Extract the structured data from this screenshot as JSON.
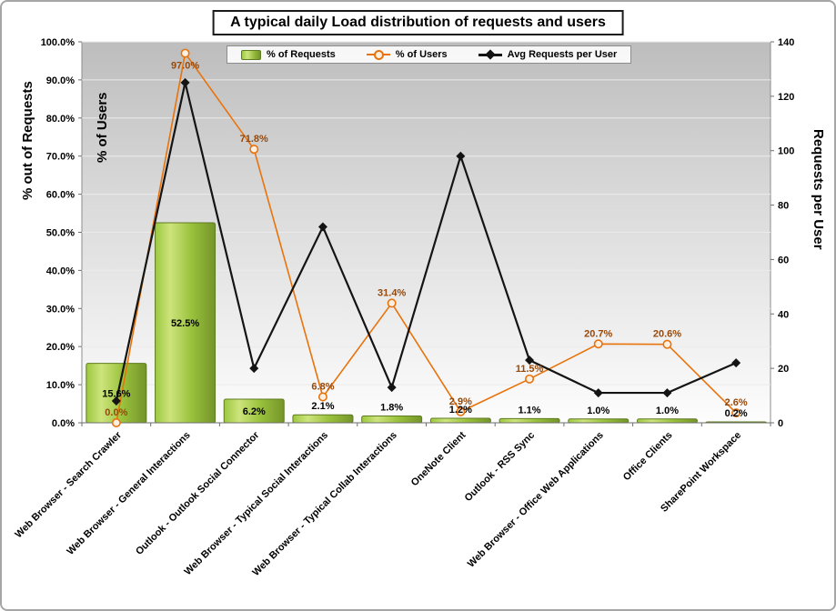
{
  "chart_data": {
    "type": "combo-bar-line",
    "title": "A typical daily Load distribution of requests and users",
    "legend_position": "top",
    "categories": [
      "Web Browser - Search Crawler",
      "Web Browser - General Interactions",
      "Outlook - Outlook Social Connector",
      "Web Browser - Typical Social Interactions",
      "Web Browser - Typical Collab Interactions",
      "OneNote Client",
      "Outlook - RSS Sync",
      "Web Browser - Office Web Applications",
      "Office Clients",
      "SharePoint Workspace"
    ],
    "series": [
      {
        "name": "% of Requests",
        "type": "bar",
        "axis": "left",
        "color": "#8CB832",
        "border_color": "#5f7b21",
        "values": [
          15.6,
          52.5,
          6.2,
          2.1,
          1.8,
          1.2,
          1.1,
          1.0,
          1.0,
          0.2
        ],
        "labels": [
          "15.6%",
          "52.5%",
          "6.2%",
          "2.1%",
          "1.8%",
          "1.2%",
          "1.1%",
          "1.0%",
          "1.0%",
          "0.2%"
        ],
        "label_color": "#000000"
      },
      {
        "name": "% of Users",
        "type": "line",
        "axis": "left",
        "color": "#E8730C",
        "values": [
          0.0,
          97.0,
          71.8,
          6.8,
          31.4,
          2.9,
          11.5,
          20.7,
          20.6,
          2.6
        ],
        "labels": [
          "0.0%",
          "97.0%",
          "71.8%",
          "6.8%",
          "31.4%",
          "2.9%",
          "11.5%",
          "20.7%",
          "20.6%",
          "2.6%"
        ],
        "label_color": "#96490B"
      },
      {
        "name": "Avg Requests per User",
        "type": "line",
        "axis": "right",
        "color": "#141414",
        "values": [
          8,
          125,
          20,
          72,
          13,
          98,
          23,
          11,
          11,
          22
        ]
      }
    ],
    "left_axis": {
      "outer_title": "% out of Requests",
      "inner_title": "% of Users",
      "min": 0,
      "max": 100,
      "ticks": [
        "0.0%",
        "10.0%",
        "20.0%",
        "30.0%",
        "40.0%",
        "50.0%",
        "60.0%",
        "70.0%",
        "80.0%",
        "90.0%",
        "100.0%"
      ]
    },
    "right_axis": {
      "title": "Requests  per  User",
      "min": 0,
      "max": 140,
      "ticks": [
        "0",
        "20",
        "40",
        "60",
        "80",
        "100",
        "120",
        "140"
      ]
    }
  }
}
